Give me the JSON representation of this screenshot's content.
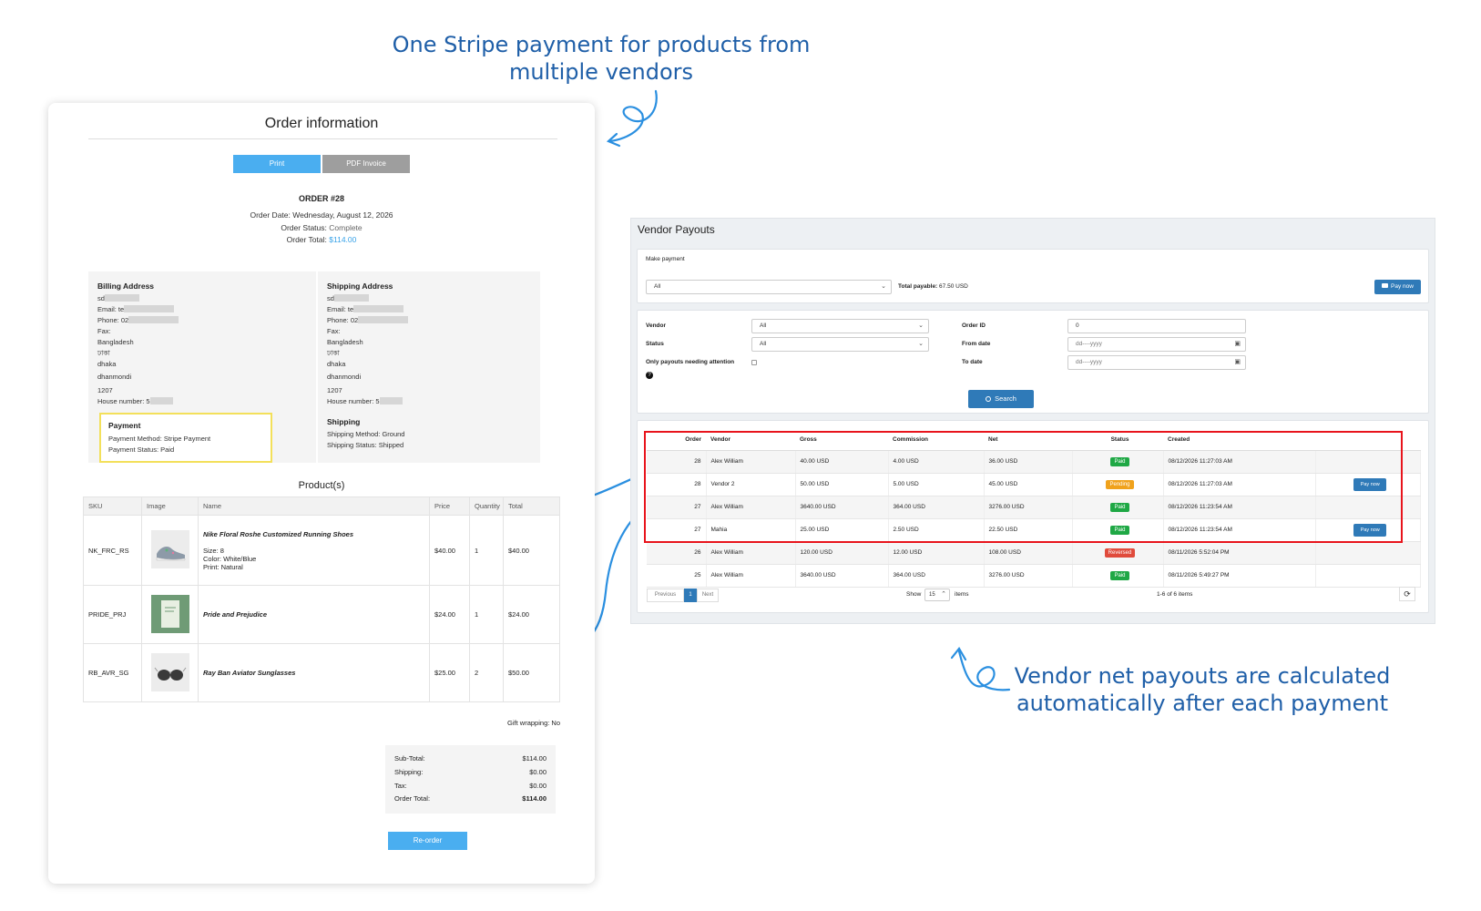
{
  "callouts": {
    "top": [
      "One Stripe payment for products from",
      "multiple vendors"
    ],
    "bottom": [
      "Vendor net payouts are calculated",
      "automatically after each payment"
    ]
  },
  "order": {
    "title": "Order information",
    "print_label": "Print",
    "pdf_label": "PDF Invoice",
    "order_number": "ORDER #28",
    "date_label": "Order Date:",
    "date_value": "Wednesday, August 12, 2026",
    "status_label": "Order Status:",
    "status_value": "Complete",
    "total_label": "Order Total:",
    "total_value": "$114.00",
    "billing": {
      "heading": "Billing Address",
      "name": "sd",
      "email": "Email: te",
      "phone": "Phone: 02",
      "fax": "Fax:",
      "country": "Bangladesh",
      "state": "ঢাকা",
      "city": "dhaka",
      "area": "dhanmondi",
      "zip": "1207",
      "house": "House number: 5"
    },
    "shipping_address": {
      "heading": "Shipping Address",
      "name": "sd",
      "email": "Email: te",
      "phone": "Phone: 02",
      "fax": "Fax:",
      "country": "Bangladesh",
      "state": "ঢাকা",
      "city": "dhaka",
      "area": "dhanmondi",
      "zip": "1207",
      "house": "House number: 5"
    },
    "payment": {
      "heading": "Payment",
      "method": "Payment Method: Stripe Payment",
      "status": "Payment Status: Paid"
    },
    "shipping": {
      "heading": "Shipping",
      "method": "Shipping Method: Ground",
      "status": "Shipping Status: Shipped"
    },
    "products_heading": "Product(s)",
    "columns": [
      "SKU",
      "Image",
      "Name",
      "Price",
      "Quantity",
      "Total"
    ],
    "products": [
      {
        "sku": "NK_FRC_RS",
        "name": "Nike Floral Roshe Customized Running Shoes",
        "attrs": [
          "Size: 8",
          "Color: White/Blue",
          "Print: Natural"
        ],
        "price": "$40.00",
        "qty": "1",
        "total": "$40.00",
        "image_icon": "shoe-thumbnail"
      },
      {
        "sku": "PRIDE_PRJ",
        "name": "Pride and Prejudice",
        "attrs": [],
        "price": "$24.00",
        "qty": "1",
        "total": "$24.00",
        "image_icon": "book-thumbnail"
      },
      {
        "sku": "RB_AVR_SG",
        "name": "Ray Ban Aviator Sunglasses",
        "attrs": [],
        "price": "$25.00",
        "qty": "2",
        "total": "$50.00",
        "image_icon": "sunglasses-thumbnail"
      }
    ],
    "gift_wrapping": "Gift wrapping: No",
    "totals": {
      "subtotal_label": "Sub-Total:",
      "subtotal": "$114.00",
      "shipping_label": "Shipping:",
      "shipping": "$0.00",
      "tax_label": "Tax:",
      "tax": "$0.00",
      "order_total_label": "Order Total:",
      "order_total": "$114.00"
    },
    "reorder_label": "Re-order"
  },
  "payouts": {
    "title": "Vendor Payouts",
    "make_payment_label": "Make payment",
    "vendor_select_value": "All",
    "total_payable_label": "Total payable:",
    "total_payable_value": "67.50 USD",
    "pay_now_label": "Pay now",
    "filters": {
      "vendor_label": "Vendor",
      "vendor_value": "All",
      "status_label": "Status",
      "status_value": "All",
      "attention_label": "Only payouts needing attention",
      "order_id_label": "Order ID",
      "order_id_value": "0",
      "from_label": "From date",
      "from_placeholder": "dd----yyyy",
      "to_label": "To date",
      "to_placeholder": "dd----yyyy",
      "search_label": "Search"
    },
    "columns": [
      "Order",
      "Vendor",
      "Gross",
      "Commission",
      "Net",
      "Status",
      "Created"
    ],
    "rows": [
      {
        "order": "28",
        "vendor": "Alex William",
        "gross": "40.00 USD",
        "commission": "4.00 USD",
        "net": "36.00 USD",
        "status": "Paid",
        "created": "08/12/2026 11:27:03 AM",
        "pay_now": false
      },
      {
        "order": "28",
        "vendor": "Vendor 2",
        "gross": "50.00 USD",
        "commission": "5.00 USD",
        "net": "45.00 USD",
        "status": "Pending",
        "created": "08/12/2026 11:27:03 AM",
        "pay_now": true
      },
      {
        "order": "27",
        "vendor": "Alex William",
        "gross": "3640.00 USD",
        "commission": "364.00 USD",
        "net": "3276.00 USD",
        "status": "Paid",
        "created": "08/12/2026 11:23:54 AM",
        "pay_now": false
      },
      {
        "order": "27",
        "vendor": "Mahia",
        "gross": "25.00 USD",
        "commission": "2.50 USD",
        "net": "22.50 USD",
        "status": "Paid",
        "created": "08/12/2026 11:23:54 AM",
        "pay_now": true
      },
      {
        "order": "26",
        "vendor": "Alex William",
        "gross": "120.00 USD",
        "commission": "12.00 USD",
        "net": "108.00 USD",
        "status": "Reversed",
        "created": "08/11/2026 5:52:04 PM",
        "pay_now": false
      },
      {
        "order": "25",
        "vendor": "Alex William",
        "gross": "3640.00 USD",
        "commission": "364.00 USD",
        "net": "3276.00 USD",
        "status": "Paid",
        "created": "08/11/2026 5:49:27 PM",
        "pay_now": false
      }
    ],
    "pager": {
      "previous": "Previous",
      "page": "1",
      "next": "Next",
      "show_label": "Show",
      "page_size": "15",
      "items_label": "items",
      "range": "1-6 of 6 items"
    },
    "colors": {
      "paid": "#1fa845",
      "pending": "#f0a21c",
      "reversed": "#e04b3c",
      "highlight": "#e8141c"
    }
  }
}
